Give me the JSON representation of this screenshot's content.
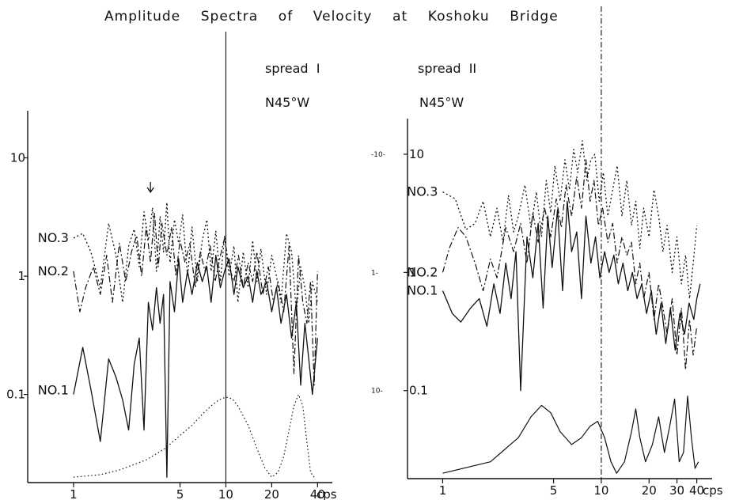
{
  "chart_data": [
    {
      "type": "line",
      "title": "Amplitude    Spectra    of    Velocity    at    Koshoku    Bridge",
      "annotation_spread": "spread  I",
      "annotation_dir": "N45°W",
      "x_scale": "log",
      "y_scale": "log",
      "xlim": [
        0.5,
        50
      ],
      "ylim": [
        0.018,
        25
      ],
      "x_ticks": [
        1,
        5,
        10,
        20,
        40
      ],
      "x_tick_labels": [
        "1",
        "5",
        "10",
        "20",
        "40"
      ],
      "x_unit": "cps",
      "y_ticks": [
        0.1,
        1,
        10
      ],
      "y_tick_labels": [
        "0.1",
        "1",
        "10"
      ],
      "vertical_marker_x": 10,
      "arrow_marker_x": 3.2,
      "series": [
        {
          "name": "NO.3",
          "style": "dotted",
          "x": [
            1,
            1.15,
            1.3,
            1.5,
            1.7,
            1.9,
            2.1,
            2.3,
            2.5,
            2.7,
            2.9,
            3.1,
            3.3,
            3.5,
            3.7,
            3.9,
            4.1,
            4.3,
            4.6,
            4.9,
            5.2,
            5.6,
            6,
            6.5,
            7,
            7.5,
            8,
            8.6,
            9.2,
            9.8,
            10.5,
            11.3,
            12,
            13,
            14,
            15,
            16,
            17,
            18.5,
            20,
            21.5,
            23,
            25,
            27,
            29,
            31,
            33,
            35,
            37,
            40
          ],
          "y": [
            2.1,
            2.3,
            1.6,
            0.8,
            2.8,
            1.5,
            0.6,
            1.8,
            2.5,
            1.2,
            3.5,
            2.0,
            3.8,
            1.1,
            3.2,
            1.6,
            4.2,
            1.3,
            3.0,
            1.9,
            3.3,
            1.0,
            2.6,
            0.9,
            2.0,
            3.0,
            1.1,
            2.4,
            0.9,
            2.2,
            1.0,
            1.8,
            0.6,
            1.6,
            0.8,
            2.0,
            0.9,
            1.7,
            0.7,
            1.5,
            1.0,
            0.6,
            2.3,
            1.6,
            0.5,
            1.2,
            0.8,
            0.4,
            0.9,
            0.6
          ]
        },
        {
          "name": "NO.2",
          "style": "dash-dot",
          "x": [
            1,
            1.1,
            1.2,
            1.35,
            1.5,
            1.65,
            1.8,
            2,
            2.2,
            2.4,
            2.6,
            2.8,
            3,
            3.2,
            3.4,
            3.6,
            3.8,
            4.1,
            4.4,
            4.7,
            5,
            5.4,
            5.8,
            6.3,
            6.8,
            7.3,
            7.9,
            8.5,
            9.1,
            9.8,
            10.5,
            11.3,
            12.1,
            13,
            14,
            15,
            16,
            17.5,
            19,
            20.5,
            22,
            24,
            26,
            28,
            30,
            32,
            34,
            36,
            38,
            40
          ],
          "y": [
            1.1,
            0.5,
            0.8,
            1.2,
            0.7,
            1.5,
            0.6,
            1.9,
            0.9,
            1.6,
            2.2,
            1.0,
            2.6,
            1.3,
            3.4,
            1.2,
            2.8,
            1.5,
            2.6,
            1.0,
            2.0,
            1.3,
            1.9,
            0.8,
            1.6,
            1.1,
            1.8,
            0.9,
            1.4,
            2.1,
            1.2,
            0.9,
            1.5,
            0.8,
            1.3,
            0.9,
            1.6,
            0.7,
            1.2,
            0.6,
            0.9,
            0.5,
            1.8,
            0.15,
            1.5,
            0.6,
            0.4,
            0.9,
            0.12,
            1.1
          ]
        },
        {
          "name": "NO.1",
          "style": "solid",
          "x": [
            1,
            1.15,
            1.3,
            1.5,
            1.7,
            1.9,
            2.1,
            2.3,
            2.5,
            2.7,
            2.9,
            3.1,
            3.3,
            3.5,
            3.7,
            3.9,
            4.1,
            4.3,
            4.6,
            4.9,
            5.2,
            5.6,
            6,
            6.5,
            7,
            7.5,
            8,
            8.6,
            9.2,
            9.8,
            10.5,
            11.3,
            12,
            13,
            14,
            15,
            16,
            17,
            18.5,
            20,
            21.5,
            23,
            25,
            27,
            29,
            31,
            33,
            35,
            37,
            40
          ],
          "y": [
            0.1,
            0.25,
            0.11,
            0.04,
            0.2,
            0.14,
            0.09,
            0.05,
            0.18,
            0.3,
            0.05,
            0.6,
            0.35,
            0.8,
            0.4,
            0.7,
            0.02,
            0.9,
            0.5,
            1.4,
            0.6,
            1.1,
            0.7,
            1.3,
            0.9,
            1.2,
            0.6,
            1.5,
            0.8,
            1.1,
            1.4,
            0.7,
            1.2,
            0.8,
            1.0,
            0.6,
            1.1,
            0.7,
            0.9,
            0.5,
            0.8,
            0.4,
            0.7,
            0.3,
            0.6,
            0.12,
            0.4,
            0.2,
            0.1,
            0.3
          ]
        },
        {
          "name": "",
          "style": "fine-dotted",
          "x": [
            1,
            1.5,
            2,
            3,
            4,
            5,
            6,
            7,
            8,
            9,
            10,
            11,
            12,
            14,
            16,
            18,
            20,
            22,
            24,
            26,
            28,
            30,
            32,
            34,
            36,
            38
          ],
          "y": [
            0.02,
            0.021,
            0.023,
            0.028,
            0.035,
            0.045,
            0.055,
            0.068,
            0.08,
            0.09,
            0.095,
            0.092,
            0.08,
            0.055,
            0.035,
            0.024,
            0.02,
            0.022,
            0.03,
            0.05,
            0.08,
            0.1,
            0.08,
            0.04,
            0.022,
            0.02
          ]
        }
      ]
    },
    {
      "type": "line",
      "annotation_spread": "spread  II",
      "annotation_dir": "N45°W",
      "x_scale": "log",
      "y_scale": "log",
      "xlim": [
        0.6,
        50
      ],
      "ylim": [
        0.018,
        20
      ],
      "x_ticks": [
        1,
        5,
        10,
        20,
        30,
        40
      ],
      "x_tick_labels": [
        "1",
        "5",
        "10",
        "20",
        "30",
        "40"
      ],
      "x_unit": "cps",
      "y_ticks": [
        0.1,
        1,
        10
      ],
      "y_tick_labels": [
        "0.1",
        "1",
        "10"
      ],
      "y_side_ticks": [
        "10-",
        "1-",
        "-10-"
      ],
      "vertical_marker_x": 10,
      "series": [
        {
          "name": "NO.3",
          "style": "dotted",
          "x": [
            1,
            1.2,
            1.4,
            1.6,
            1.8,
            2,
            2.2,
            2.4,
            2.6,
            2.8,
            3,
            3.3,
            3.6,
            3.9,
            4.2,
            4.5,
            4.8,
            5.1,
            5.5,
            5.9,
            6.3,
            6.7,
            7.1,
            7.6,
            8.1,
            8.6,
            9.1,
            9.7,
            10.3,
            11,
            11.8,
            12.6,
            13.5,
            14.5,
            15.5,
            16.5,
            17.5,
            18.5,
            20,
            21.5,
            23,
            24.5,
            26,
            28,
            30,
            32,
            34,
            36,
            38,
            40
          ],
          "y": [
            4.8,
            4.2,
            2.3,
            2.6,
            4.0,
            2.0,
            3.5,
            1.8,
            4.5,
            2.2,
            3.0,
            5.5,
            2.4,
            4.8,
            2.0,
            6.0,
            3.2,
            8.0,
            4.0,
            9.0,
            5.0,
            11.0,
            7.0,
            13.0,
            6.0,
            9.0,
            10.0,
            4.0,
            7.0,
            3.0,
            5.0,
            8.0,
            3.0,
            6.0,
            2.5,
            4.0,
            1.6,
            3.5,
            2.0,
            5.0,
            3.0,
            1.5,
            2.5,
            1.0,
            2.0,
            0.8,
            1.4,
            0.6,
            1.2,
            2.5
          ]
        },
        {
          "name": "NO.2",
          "style": "dash-dot",
          "x": [
            1,
            1.1,
            1.25,
            1.4,
            1.6,
            1.8,
            2,
            2.2,
            2.5,
            2.8,
            3.1,
            3.4,
            3.7,
            4,
            4.4,
            4.8,
            5.2,
            5.6,
            6,
            6.5,
            7,
            7.5,
            8,
            8.5,
            9,
            9.6,
            10.2,
            11,
            11.8,
            12.6,
            13.5,
            14.5,
            15.5,
            16.5,
            17.5,
            18.5,
            20,
            21.5,
            23,
            24.5,
            26,
            28,
            30,
            32,
            34,
            36,
            38,
            40
          ],
          "y": [
            1.0,
            1.6,
            2.4,
            2.0,
            1.2,
            0.7,
            1.3,
            0.9,
            2.4,
            1.5,
            2.6,
            1.2,
            3.2,
            1.8,
            3.5,
            2.0,
            4.2,
            2.4,
            5.5,
            3.0,
            6.5,
            3.5,
            9.0,
            4.0,
            6.0,
            2.5,
            3.5,
            1.8,
            2.6,
            1.2,
            2.0,
            1.4,
            1.8,
            0.8,
            1.2,
            0.6,
            1.0,
            0.4,
            0.8,
            0.5,
            0.3,
            0.6,
            0.2,
            0.5,
            0.15,
            0.4,
            0.2,
            0.35
          ]
        },
        {
          "name": "NO.1",
          "style": "solid",
          "x": [
            1,
            1.15,
            1.3,
            1.5,
            1.7,
            1.9,
            2.1,
            2.3,
            2.5,
            2.7,
            2.9,
            3.1,
            3.4,
            3.7,
            4,
            4.3,
            4.6,
            4.9,
            5.3,
            5.7,
            6.1,
            6.5,
            7,
            7.5,
            8,
            8.6,
            9.2,
            9.8,
            10.5,
            11.2,
            12,
            12.8,
            13.7,
            14.7,
            15.7,
            16.8,
            18,
            19.3,
            20.7,
            22.2,
            23.8,
            25.5,
            27.3,
            29.2,
            31.3,
            33.5,
            35.8,
            38.3,
            40,
            42
          ],
          "y": [
            0.7,
            0.45,
            0.38,
            0.5,
            0.6,
            0.35,
            0.8,
            0.45,
            1.2,
            0.6,
            1.5,
            0.1,
            2.0,
            0.9,
            2.6,
            0.5,
            3.0,
            1.1,
            3.4,
            0.7,
            4.0,
            1.5,
            2.2,
            0.6,
            3.0,
            1.2,
            2.0,
            0.9,
            1.5,
            1.0,
            1.4,
            0.8,
            1.2,
            0.7,
            1.0,
            0.6,
            0.8,
            0.45,
            0.7,
            0.3,
            0.55,
            0.25,
            0.5,
            0.22,
            0.45,
            0.3,
            0.55,
            0.4,
            0.6,
            0.8
          ]
        },
        {
          "name": "",
          "style": "solid-thin",
          "x": [
            1,
            2,
            3,
            3.6,
            4.2,
            4.8,
            5.5,
            6.5,
            7.5,
            8.5,
            9.5,
            10.5,
            11.5,
            12.5,
            14,
            15.5,
            16.5,
            17.5,
            19,
            21,
            23,
            25,
            27,
            29,
            31,
            33,
            35,
            37,
            39,
            41
          ],
          "y": [
            0.02,
            0.025,
            0.04,
            0.06,
            0.075,
            0.065,
            0.045,
            0.035,
            0.04,
            0.05,
            0.055,
            0.04,
            0.025,
            0.02,
            0.025,
            0.045,
            0.07,
            0.04,
            0.025,
            0.035,
            0.06,
            0.03,
            0.05,
            0.085,
            0.025,
            0.03,
            0.09,
            0.04,
            0.022,
            0.025
          ]
        }
      ]
    }
  ]
}
